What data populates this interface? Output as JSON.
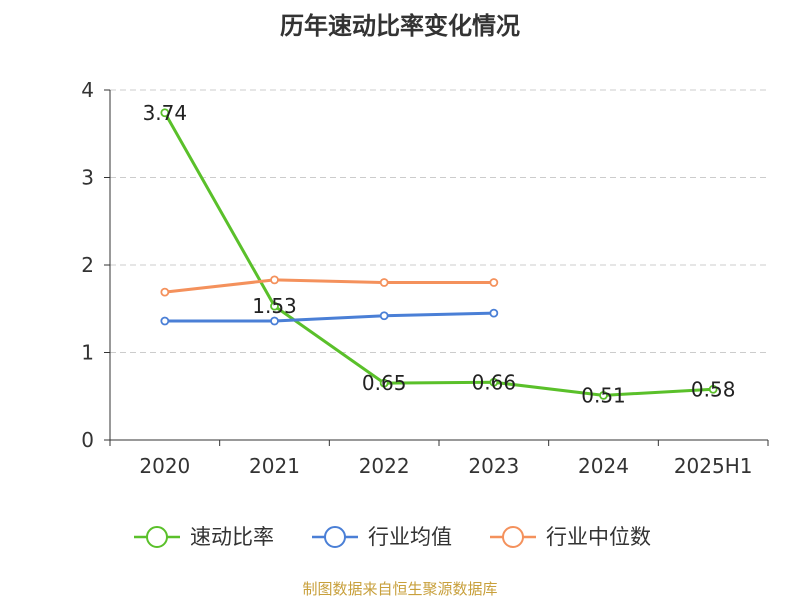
{
  "title": "历年速动比率变化情况",
  "source": "制图数据来自恒生聚源数据库",
  "chart_data": {
    "type": "line",
    "title": "历年速动比率变化情况",
    "categories": [
      "2020",
      "2021",
      "2022",
      "2023",
      "2024",
      "2025H1"
    ],
    "ylim": [
      0,
      4
    ],
    "yticks": [
      0,
      1,
      2,
      3,
      4
    ],
    "grid": true,
    "legend_position": "bottom",
    "series": [
      {
        "name": "速动比率",
        "color": "#5ac02a",
        "values": [
          3.74,
          1.53,
          0.65,
          0.66,
          0.51,
          0.58
        ],
        "labels": true
      },
      {
        "name": "行业均值",
        "color": "#4a7fd6",
        "values": [
          1.36,
          1.36,
          1.42,
          1.45,
          null,
          null
        ],
        "labels": false
      },
      {
        "name": "行业中位数",
        "color": "#f4915c",
        "values": [
          1.69,
          1.83,
          1.8,
          1.8,
          null,
          null
        ],
        "labels": false
      }
    ]
  }
}
